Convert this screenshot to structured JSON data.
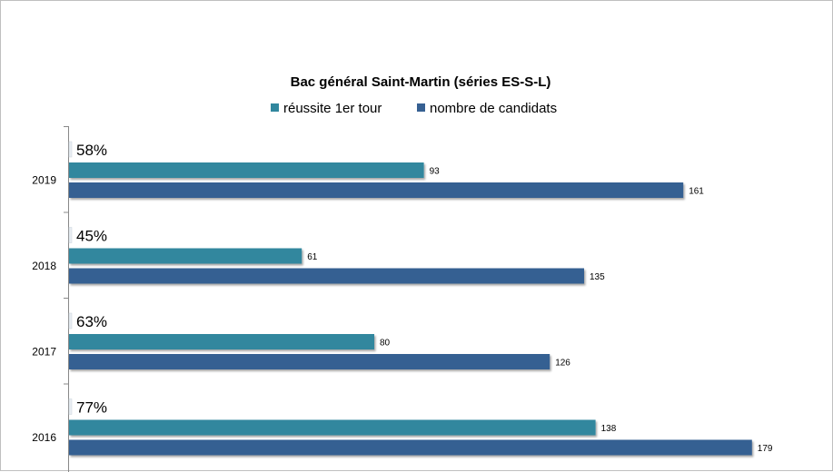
{
  "chart_data": {
    "type": "bar",
    "orientation": "horizontal",
    "title": "Bac général Saint-Martin (séries ES-S-L)",
    "legend_position": "top",
    "categories": [
      "2019",
      "2018",
      "2017",
      "2016"
    ],
    "series": [
      {
        "name": "réussite 1er tour",
        "color": "#31879e",
        "values": [
          93,
          61,
          80,
          138
        ]
      },
      {
        "name": "nombre de candidats",
        "color": "#366092",
        "values": [
          161,
          135,
          126,
          179
        ]
      }
    ],
    "annotations": [
      "58%",
      "45%",
      "63%",
      "77%"
    ],
    "xlim": [
      0,
      180
    ],
    "grid": false,
    "x_axis_visible": false
  }
}
